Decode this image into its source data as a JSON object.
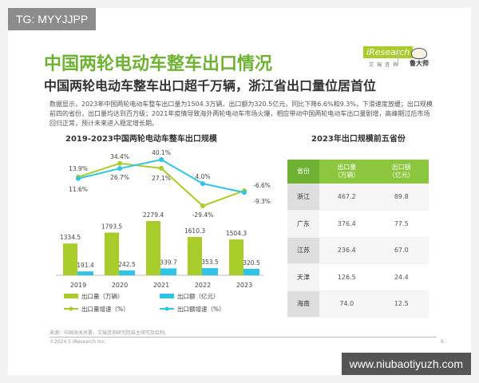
{
  "watermarks": {
    "top": "TG: MYYJJPP",
    "bottom": "www.niubaotiyuzh.com"
  },
  "header": {
    "title": "中国两轮电动车整车出口情况",
    "subtitle": "中国两轮电动车整车出口超千万辆，浙江省出口量位居首位",
    "logo": "iResearch",
    "logo_sub": "艾瑞咨询",
    "logo2": "鲁大师"
  },
  "body_text": "数据显示，2023年中国两轮电动车整车出口量为1504.3万辆，出口额为320.5亿元，同比下降6.6%和9.3%，下滑速度放缓；出口规模前四的省份，出口量均达到百万级；2021年疫情导致海外两轮电动车市场火爆，相应带动中国两轮电动车出口量剧增，高峰期过后市场回归正常，预计未来进入稳定增长期。",
  "chart_data": [
    {
      "type": "bar+line",
      "title": "2019-2023中国两轮电动车整车出口规模",
      "categories": [
        "2019",
        "2020",
        "2021",
        "2022",
        "2023"
      ],
      "series": [
        {
          "name": "出口量（万辆）",
          "type": "bar",
          "color": "#a8cc2a",
          "values": [
            1334.5,
            1793.5,
            2279.4,
            1610.3,
            1504.3
          ],
          "labels": [
            "1334.5",
            "1793.5",
            "2279.4",
            "1610.3",
            "1504.3"
          ]
        },
        {
          "name": "出口额（亿元）",
          "type": "bar",
          "color": "#2ec4e8",
          "values": [
            191.4,
            242.5,
            339.7,
            353.5,
            320.5
          ],
          "labels": [
            "191.4",
            "242.5",
            "339.7",
            "353.5",
            "320.5"
          ]
        },
        {
          "name": "出口量增速（%）",
          "type": "line",
          "color": "#a8cc2a",
          "values": [
            13.9,
            34.4,
            27.1,
            -29.4,
            -6.6
          ],
          "labels": [
            "13.9%",
            "34.4%",
            "27.1%",
            "-29.4%",
            "-6.6%"
          ]
        },
        {
          "name": "出口额增速（%）",
          "type": "line",
          "color": "#2ec4e8",
          "values": [
            11.6,
            26.7,
            40.1,
            4.0,
            -9.3
          ],
          "labels": [
            "11.6%",
            "26.7%",
            "40.1%",
            "4.0%",
            "-9.3%"
          ]
        }
      ],
      "legend_placement": "bottom"
    },
    {
      "type": "table",
      "title": "2023年出口规模前五省份",
      "columns": [
        "省份",
        "出口量\n（万辆）",
        "出口额\n（亿元）"
      ],
      "rows": [
        [
          "浙江",
          "467.2",
          "89.8"
        ],
        [
          "广东",
          "376.4",
          "77.5"
        ],
        [
          "江苏",
          "236.4",
          "67.0"
        ],
        [
          "天津",
          "126.5",
          "24.4"
        ],
        [
          "海南",
          "74.0",
          "12.5"
        ]
      ]
    }
  ],
  "footer": {
    "source": "来源：中国海关总署，艾瑞咨询研究院自主研究及绘制。",
    "copyright": "©2024.5 iResearch Inc.",
    "page": "6"
  }
}
